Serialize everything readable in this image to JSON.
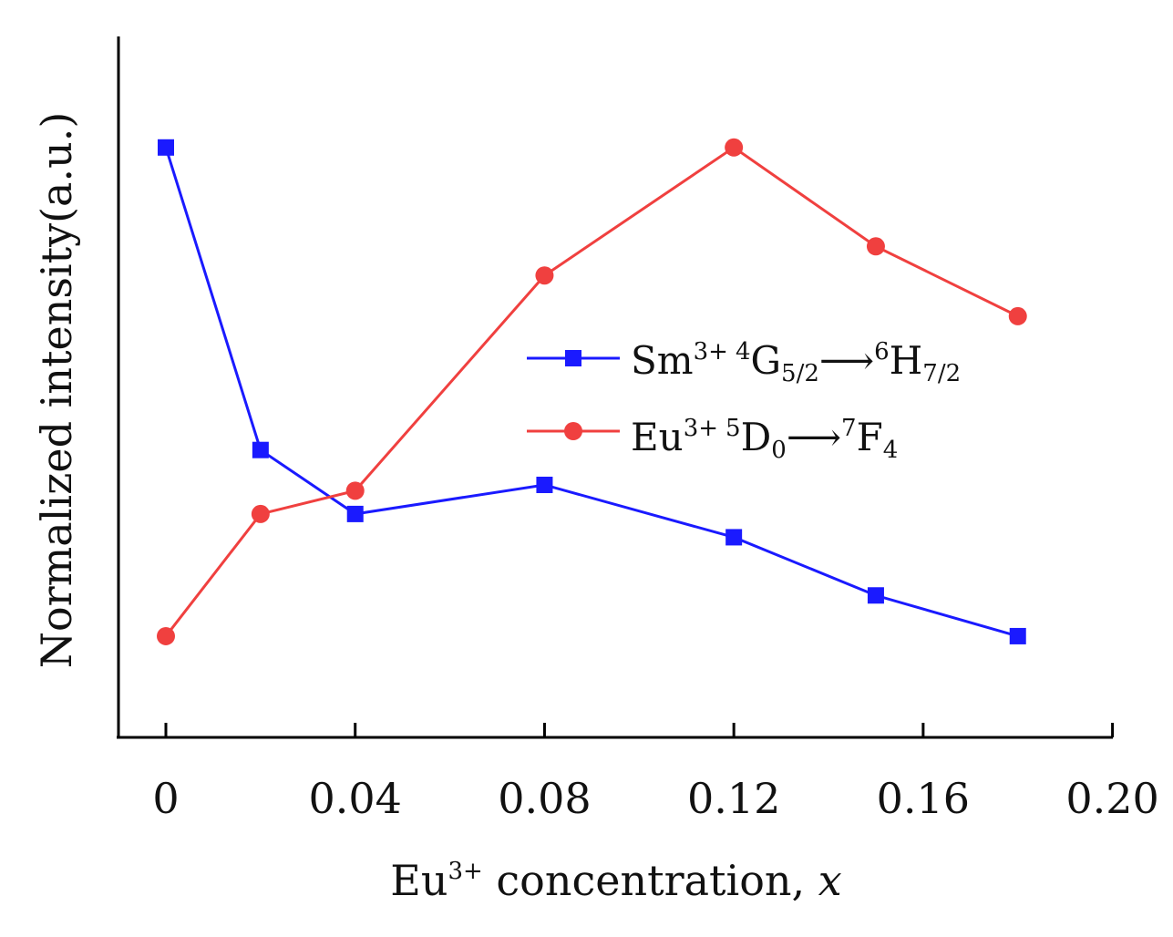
{
  "chart_data": {
    "type": "line",
    "x": [
      0,
      0.02,
      0.04,
      0.08,
      0.12,
      0.15,
      0.18
    ],
    "xlim": [
      -0.01,
      0.2
    ],
    "ylim": [
      0,
      1.0
    ],
    "x_ticks": [
      0,
      0.04,
      0.08,
      0.12,
      0.16,
      0.2
    ],
    "x_tick_labels": [
      "0",
      "0.04",
      "0.08",
      "0.12",
      "0.16",
      "0.20"
    ],
    "xlabel": {
      "base": "Eu",
      "sup": "3+",
      "rest": " concentration, ",
      "var": "x"
    },
    "ylabel": "Normalized intensity(a.u.)",
    "grid": false,
    "legend_position": "center-right",
    "series": [
      {
        "key": "sm",
        "color": "#1a1aff",
        "marker": "square",
        "values": [
          0.92,
          0.4,
          0.29,
          0.34,
          0.25,
          0.15,
          0.08
        ],
        "label": {
          "ion": "Sm",
          "ion_sup": "3+",
          "l1_sup": "4",
          "l1": "G",
          "l1_sub": "5/2",
          "arrow": "⟶",
          "l2_sup": "6",
          "l2": "H",
          "l2_sub": "7/2"
        }
      },
      {
        "key": "eu",
        "color": "#f0403f",
        "marker": "circle",
        "values": [
          0.08,
          0.29,
          0.33,
          0.7,
          0.92,
          0.75,
          0.63
        ],
        "label": {
          "ion": "Eu",
          "ion_sup": "3+",
          "l1_sup": "5",
          "l1": "D",
          "l1_sub": "0",
          "arrow": "⟶",
          "l2_sup": "7",
          "l2": "F",
          "l2_sub": "4"
        }
      }
    ]
  }
}
